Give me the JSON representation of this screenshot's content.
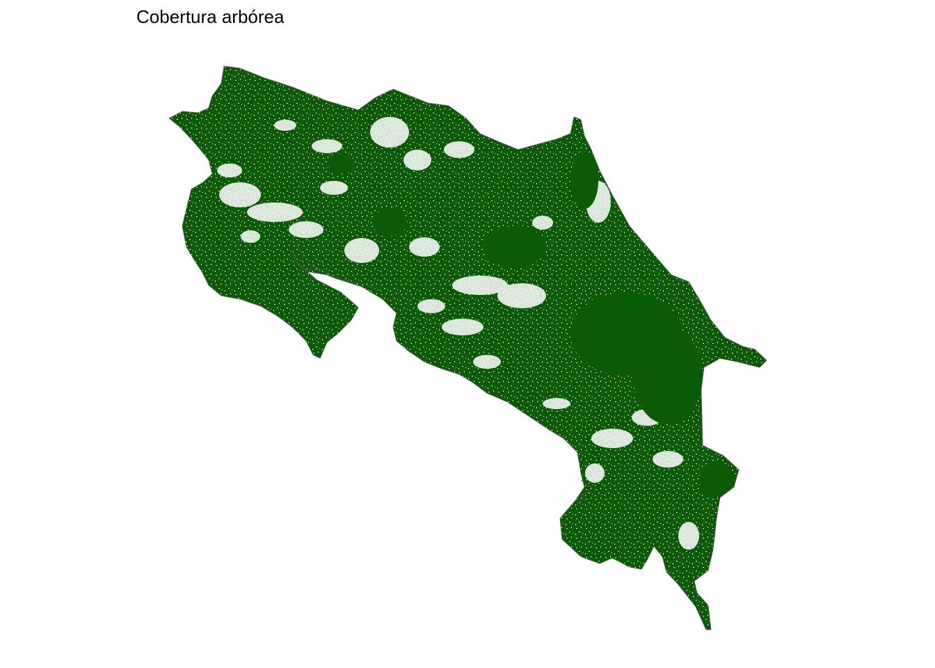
{
  "title": "Cobertura arbórea",
  "map": {
    "subject": "Costa Rica",
    "layer": "tree-cover",
    "fill_color": "#0b5a05",
    "non_cover_color": "#ffffff",
    "outline_color": "#555555",
    "background_color": "#ffffff",
    "legend": "none",
    "axes": "none"
  }
}
